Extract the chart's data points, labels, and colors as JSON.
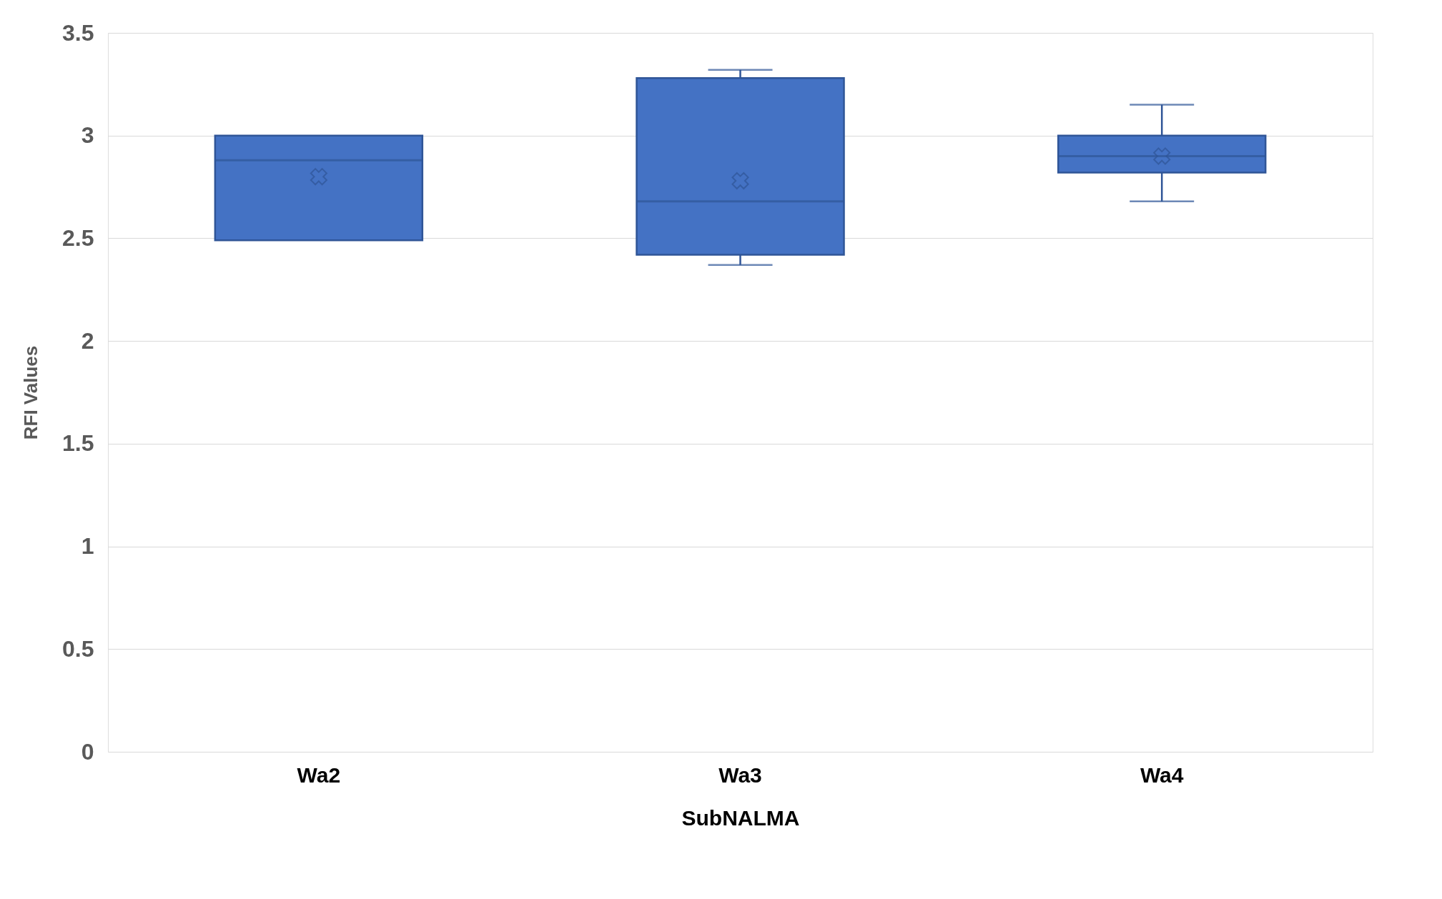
{
  "chart_data": {
    "type": "box",
    "xlabel": "SubNALMA",
    "ylabel": "RFI Values",
    "categories": [
      "Wa2",
      "Wa3",
      "Wa4"
    ],
    "color": "#4472c4",
    "ylim": [
      0,
      3.5
    ],
    "yticks": [
      0,
      0.5,
      1,
      1.5,
      2,
      2.5,
      3,
      3.5
    ],
    "grid": "y",
    "boxes": [
      {
        "low": 2.49,
        "q1": 2.49,
        "median": 2.88,
        "q3": 3.0,
        "high": 3.0,
        "mean": 2.8
      },
      {
        "low": 2.37,
        "q1": 2.42,
        "median": 2.68,
        "q3": 3.28,
        "high": 3.32,
        "mean": 2.78
      },
      {
        "low": 2.68,
        "q1": 2.82,
        "median": 2.9,
        "q3": 3.0,
        "high": 3.15,
        "mean": 2.9
      }
    ]
  }
}
